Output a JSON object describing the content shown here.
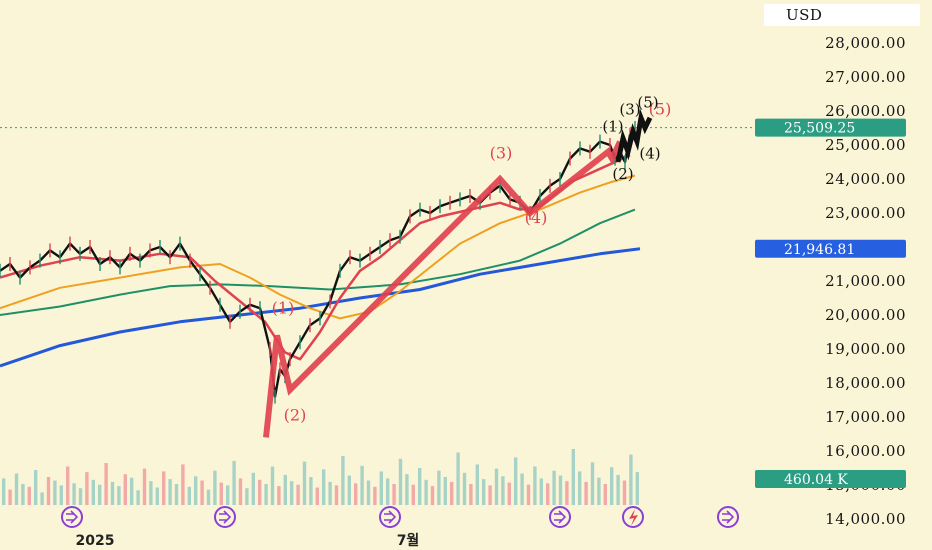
{
  "chart_data": {
    "type": "line",
    "currency": "USD",
    "y_ticks": [
      "28,000.00",
      "27,000.00",
      "26,000.00",
      "25,000.00",
      "24,000.00",
      "23,000.00",
      "21,000.00",
      "20,000.00",
      "19,000.00",
      "18,000.00",
      "17,000.00",
      "16,000.00",
      "15,000.00",
      "14,000.00"
    ],
    "ylim": [
      14000,
      28500
    ],
    "x_ticks": [
      "2025",
      "7월"
    ],
    "last_price": "25,509.25",
    "ma_label": "21,946.81",
    "volume_label": "460.04 K",
    "colors": {
      "price": "#111111",
      "ma_short": "#e0424f",
      "ma_mid": "#f0a020",
      "ma_long": "#1e9066",
      "ma_xlong": "#2358d8",
      "wave": "#e0424f",
      "badge_green": "#2a9d82",
      "badge_blue": "#2660e0",
      "volume_up": "#a7d3c6",
      "volume_down": "#f2aaa9"
    },
    "price_path": [
      [
        0,
        21300
      ],
      [
        10,
        21500
      ],
      [
        20,
        21100
      ],
      [
        30,
        21400
      ],
      [
        40,
        21600
      ],
      [
        50,
        21900
      ],
      [
        60,
        21700
      ],
      [
        70,
        22100
      ],
      [
        80,
        21800
      ],
      [
        90,
        22000
      ],
      [
        100,
        21500
      ],
      [
        110,
        21700
      ],
      [
        120,
        21400
      ],
      [
        130,
        21800
      ],
      [
        140,
        21600
      ],
      [
        150,
        21900
      ],
      [
        160,
        22000
      ],
      [
        170,
        21700
      ],
      [
        180,
        22100
      ],
      [
        190,
        21600
      ],
      [
        200,
        21200
      ],
      [
        210,
        20800
      ],
      [
        220,
        20300
      ],
      [
        230,
        19800
      ],
      [
        240,
        20100
      ],
      [
        250,
        20300
      ],
      [
        260,
        20200
      ],
      [
        270,
        19000
      ],
      [
        275,
        17600
      ],
      [
        280,
        18400
      ],
      [
        285,
        18200
      ],
      [
        290,
        18700
      ],
      [
        300,
        19200
      ],
      [
        310,
        19700
      ],
      [
        320,
        19900
      ],
      [
        330,
        20400
      ],
      [
        340,
        21300
      ],
      [
        350,
        21700
      ],
      [
        360,
        21600
      ],
      [
        370,
        21800
      ],
      [
        380,
        22000
      ],
      [
        390,
        22200
      ],
      [
        400,
        22300
      ],
      [
        410,
        22900
      ],
      [
        420,
        23100
      ],
      [
        430,
        23000
      ],
      [
        440,
        23200
      ],
      [
        450,
        23300
      ],
      [
        460,
        23400
      ],
      [
        470,
        23500
      ],
      [
        480,
        23300
      ],
      [
        490,
        23600
      ],
      [
        500,
        23800
      ],
      [
        510,
        23400
      ],
      [
        520,
        23300
      ],
      [
        530,
        23000
      ],
      [
        540,
        23500
      ],
      [
        550,
        23800
      ],
      [
        560,
        24000
      ],
      [
        570,
        24600
      ],
      [
        580,
        24900
      ],
      [
        590,
        24800
      ],
      [
        600,
        25100
      ],
      [
        610,
        25000
      ],
      [
        615,
        24600
      ],
      [
        620,
        24800
      ],
      [
        625,
        24500
      ],
      [
        630,
        25300
      ],
      [
        635,
        25500
      ]
    ],
    "ma_short": [
      [
        0,
        21100
      ],
      [
        40,
        21450
      ],
      [
        80,
        21700
      ],
      [
        120,
        21600
      ],
      [
        160,
        21800
      ],
      [
        190,
        21700
      ],
      [
        215,
        21000
      ],
      [
        240,
        20400
      ],
      [
        265,
        19800
      ],
      [
        285,
        18900
      ],
      [
        300,
        18700
      ],
      [
        320,
        19500
      ],
      [
        340,
        20500
      ],
      [
        360,
        21300
      ],
      [
        380,
        21700
      ],
      [
        400,
        22200
      ],
      [
        420,
        22700
      ],
      [
        440,
        22900
      ],
      [
        470,
        23100
      ],
      [
        500,
        23300
      ],
      [
        520,
        23100
      ],
      [
        540,
        23200
      ],
      [
        570,
        23900
      ],
      [
        600,
        24300
      ],
      [
        630,
        24700
      ]
    ],
    "ma_mid": [
      [
        0,
        20200
      ],
      [
        60,
        20800
      ],
      [
        120,
        21100
      ],
      [
        180,
        21400
      ],
      [
        220,
        21500
      ],
      [
        250,
        21100
      ],
      [
        280,
        20600
      ],
      [
        310,
        20200
      ],
      [
        340,
        19900
      ],
      [
        370,
        20100
      ],
      [
        400,
        20700
      ],
      [
        430,
        21400
      ],
      [
        460,
        22100
      ],
      [
        500,
        22700
      ],
      [
        540,
        23100
      ],
      [
        580,
        23600
      ],
      [
        610,
        23900
      ],
      [
        635,
        24100
      ]
    ],
    "ma_long": [
      [
        0,
        20000
      ],
      [
        60,
        20250
      ],
      [
        120,
        20600
      ],
      [
        170,
        20850
      ],
      [
        220,
        20900
      ],
      [
        270,
        20850
      ],
      [
        330,
        20750
      ],
      [
        400,
        20900
      ],
      [
        460,
        21200
      ],
      [
        520,
        21600
      ],
      [
        560,
        22100
      ],
      [
        600,
        22700
      ],
      [
        635,
        23100
      ]
    ],
    "ma_xlong": [
      [
        0,
        18500
      ],
      [
        60,
        19100
      ],
      [
        120,
        19500
      ],
      [
        180,
        19800
      ],
      [
        240,
        20000
      ],
      [
        300,
        20200
      ],
      [
        360,
        20500
      ],
      [
        420,
        20750
      ],
      [
        480,
        21200
      ],
      [
        540,
        21500
      ],
      [
        600,
        21800
      ],
      [
        640,
        21950
      ]
    ],
    "wave_main": [
      [
        266,
        16400
      ],
      [
        277,
        19400
      ],
      [
        290,
        17800
      ],
      [
        500,
        24000
      ],
      [
        530,
        23000
      ],
      [
        608,
        24800
      ],
      [
        612,
        24600
      ],
      [
        620,
        25100
      ]
    ],
    "wave_sub": [
      [
        618,
        24500
      ],
      [
        623,
        25200
      ],
      [
        628,
        24800
      ],
      [
        633,
        25400
      ],
      [
        637,
        25100
      ],
      [
        641,
        25800
      ],
      [
        645,
        25500
      ],
      [
        650,
        25800
      ]
    ],
    "wave_labels": [
      {
        "text": "(1)",
        "x": 283,
        "y": 20050,
        "style": "red"
      },
      {
        "text": "(2)",
        "x": 295,
        "y": 16900,
        "style": "red"
      },
      {
        "text": "(3)",
        "x": 501,
        "y": 24600,
        "style": "red"
      },
      {
        "text": "(4)",
        "x": 536,
        "y": 22700,
        "style": "red"
      },
      {
        "text": "(5)",
        "x": 660,
        "y": 25900,
        "style": "red"
      },
      {
        "text": "(1)",
        "x": 613,
        "y": 25400,
        "style": "black"
      },
      {
        "text": "(2)",
        "x": 623,
        "y": 24000,
        "style": "black"
      },
      {
        "text": "(3)",
        "x": 630,
        "y": 25900,
        "style": "black"
      },
      {
        "text": "(4)",
        "x": 650,
        "y": 24600,
        "style": "black"
      },
      {
        "text": "(5)",
        "x": 648,
        "y": 26100,
        "style": "black"
      }
    ],
    "event_markers_x": [
      72,
      225,
      390,
      560,
      633,
      728
    ],
    "volume": [
      38,
      22,
      45,
      30,
      26,
      50,
      18,
      40,
      35,
      28,
      55,
      31,
      24,
      47,
      36,
      29,
      60,
      33,
      27,
      44,
      39,
      21,
      52,
      34,
      25,
      48,
      37,
      30,
      58,
      26,
      41,
      35,
      22,
      49,
      32,
      28,
      63,
      38,
      24,
      46,
      36,
      30,
      55,
      27,
      43,
      34,
      29,
      62,
      40,
      25,
      51,
      33,
      28,
      70,
      42,
      31,
      56,
      35,
      26,
      48,
      38,
      30,
      66,
      44,
      29,
      53,
      36,
      27,
      49,
      40,
      33,
      75,
      46,
      30,
      58,
      37,
      28,
      52,
      41,
      32,
      68,
      45,
      29,
      55,
      38,
      31,
      49,
      42,
      34,
      80,
      48,
      33,
      61,
      39,
      30,
      54,
      43,
      35,
      72,
      47
    ]
  }
}
